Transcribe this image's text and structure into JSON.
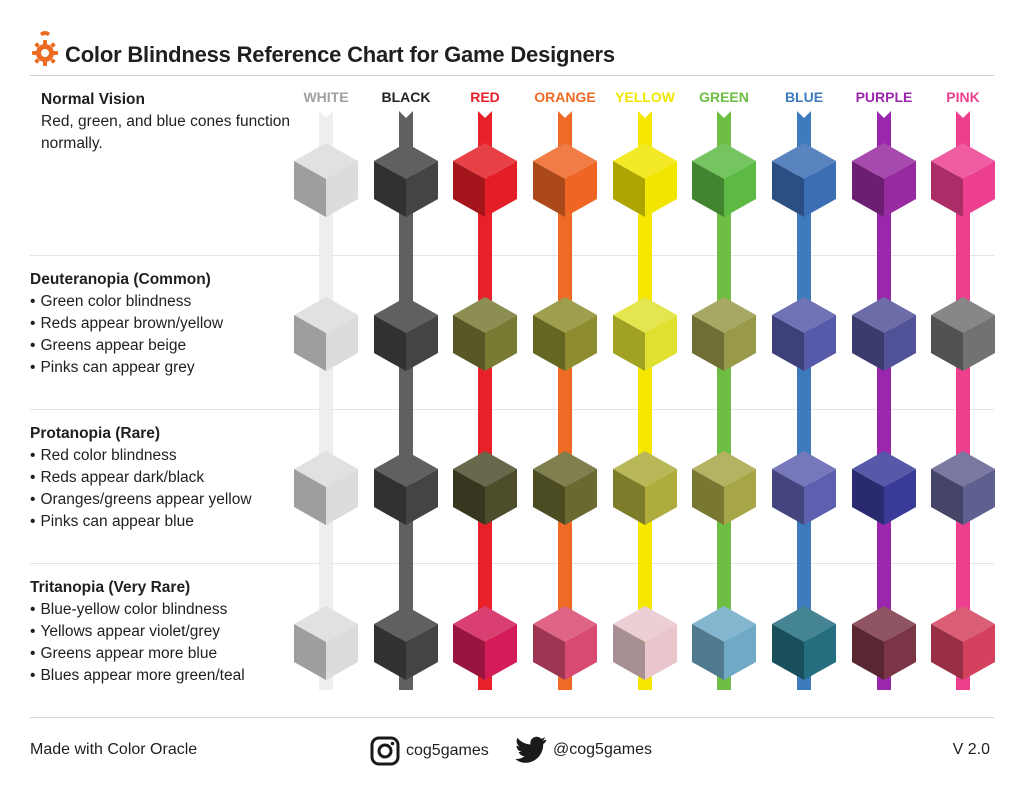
{
  "title": "Color Blindness Reference Chart for Game Designers",
  "columns": [
    {
      "name": "WHITE",
      "label_color": "#a0a0a0"
    },
    {
      "name": "BLACK",
      "label_color": "#222222"
    },
    {
      "name": "RED",
      "label_color": "#e8202a"
    },
    {
      "name": "ORANGE",
      "label_color": "#ef6a24"
    },
    {
      "name": "YELLOW",
      "label_color": "#f2e600"
    },
    {
      "name": "GREEN",
      "label_color": "#6ebe44"
    },
    {
      "name": "BLUE",
      "label_color": "#3e7bbd"
    },
    {
      "name": "PURPLE",
      "label_color": "#9b27ae"
    },
    {
      "name": "PINK",
      "label_color": "#ee3f8f"
    }
  ],
  "bar_colors": [
    "#eeeeee",
    "#606060",
    "#e8202a",
    "#ef6a24",
    "#f6e700",
    "#6ebe44",
    "#3e7bbd",
    "#9b27ae",
    "#ee3f8f"
  ],
  "sections": [
    {
      "heading": "Normal Vision",
      "description": "Red, green, and blue cones function normally.",
      "bullets": [],
      "cubes": [
        "#dcdcdc",
        "#444444",
        "#e41e26",
        "#ee6524",
        "#f2e500",
        "#5cb944",
        "#3c6eb4",
        "#962a9e",
        "#ec3f90"
      ]
    },
    {
      "heading": "Deuteranopia (Common)",
      "description": "",
      "bullets": [
        "Green color blindness",
        "Reds appear brown/yellow",
        "Greens appear beige",
        "Pinks can appear grey"
      ],
      "cubes": [
        "#dcdcdc",
        "#444444",
        "#797a34",
        "#8d8d30",
        "#e0e030",
        "#99994a",
        "#565aa8",
        "#525299",
        "#727272"
      ]
    },
    {
      "heading": "Protanopia (Rare)",
      "description": "",
      "bullets": [
        "Red color blindness",
        "Reds appear dark/black",
        "Oranges/greens appear yellow",
        "Pinks can appear blue"
      ],
      "cubes": [
        "#dcdcdc",
        "#444444",
        "#4d4d2c",
        "#6a6a30",
        "#adac3c",
        "#a6a646",
        "#5f5fb0",
        "#3a3a99",
        "#606090"
      ]
    },
    {
      "heading": "Tritanopia (Very Rare)",
      "description": "",
      "bullets": [
        "Blue-yellow color blindness",
        "Yellows appear violet/grey",
        "Greens appear more blue",
        "Blues appear more green/teal"
      ],
      "cubes": [
        "#dcdcdc",
        "#444444",
        "#d41d58",
        "#d94a72",
        "#e8c6cc",
        "#6fa9c6",
        "#246e80",
        "#7a3646",
        "#d4415e"
      ]
    }
  ],
  "footer": {
    "left": "Made with Color Oracle",
    "instagram": "cog5games",
    "twitter": "@cog5games",
    "version": "V 2.0"
  }
}
